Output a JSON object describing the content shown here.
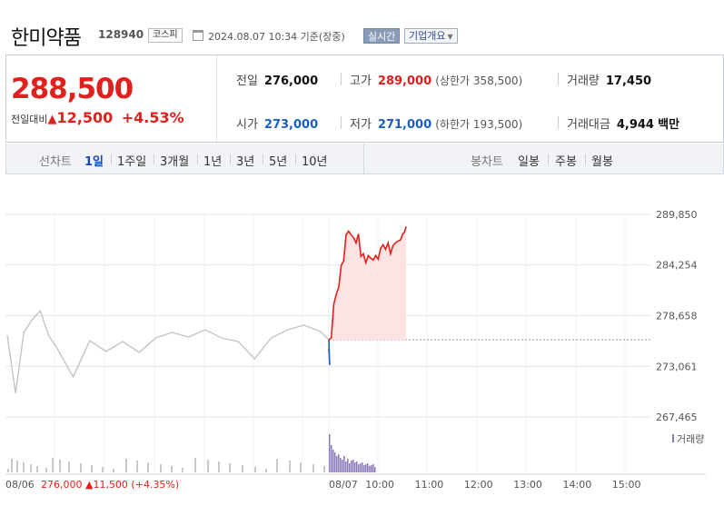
{
  "header": {
    "name": "한미약품",
    "code": "128940",
    "market": "코스피",
    "timestamp": "2024.08.07 10:34 기준(장중)",
    "realtime": "실시간",
    "company_overview": "기업개요"
  },
  "summary": {
    "price": "288,500",
    "change_label": "전일대비",
    "change_value": "12,500",
    "change_pct": "+4.53%",
    "prev_close_label": "전일",
    "prev_close": "276,000",
    "high_label": "고가",
    "high": "289,000",
    "upper_limit": "(상한가 358,500)",
    "volume_label": "거래량",
    "volume": "17,450",
    "open_label": "시가",
    "open": "273,000",
    "low_label": "저가",
    "low": "271,000",
    "lower_limit": "(하한가 193,500)",
    "amount_label": "거래대금",
    "amount": "4,944",
    "amount_unit": "백만"
  },
  "tabs": {
    "line_label": "선차트",
    "line_tabs": [
      "1일",
      "1주일",
      "3개월",
      "1년",
      "3년",
      "5년",
      "10년"
    ],
    "candle_label": "봉차트",
    "candle_tabs": [
      "일봉",
      "주봉",
      "월봉"
    ]
  },
  "colors": {
    "up": "#e0201c",
    "down": "#1a5ec8",
    "prev_line": "#aaaaaa",
    "volume_today": "#8a78b8"
  },
  "chart_data": {
    "type": "line",
    "ylim": [
      267465,
      289850
    ],
    "y_ticks": [
      "289,850",
      "284,254",
      "278,658",
      "273,061",
      "267,465"
    ],
    "x_ticks": [
      "10:00",
      "11:00",
      "12:00",
      "13:00",
      "14:00",
      "15:00"
    ],
    "prev_day_start": "08/06",
    "today_start": "08/07",
    "prev_close": 276000,
    "prev_day_caption": "276,000 ▲11,500 (+4.35%)",
    "volume_legend": "거래량",
    "series": [
      {
        "day": "08/06",
        "x": [
          "09:00",
          "09:10",
          "09:20",
          "09:30",
          "09:40",
          "09:50",
          "10:00",
          "10:20",
          "10:40",
          "11:00",
          "11:20",
          "11:40",
          "12:00",
          "12:20",
          "12:40",
          "13:00",
          "13:20",
          "13:40",
          "14:00",
          "14:20",
          "14:40",
          "15:00",
          "15:20",
          "15:30"
        ],
        "values": [
          276500,
          270100,
          276800,
          278200,
          279200,
          276500,
          275100,
          271900,
          275900,
          274700,
          275800,
          274600,
          276200,
          276800,
          276300,
          277100,
          276200,
          275800,
          273900,
          276200,
          277100,
          277600,
          276900,
          276000
        ]
      },
      {
        "day": "08/07",
        "x": [
          "09:00",
          "09:01",
          "09:03",
          "09:06",
          "09:09",
          "09:12",
          "09:15",
          "09:18",
          "09:21",
          "09:24",
          "09:27",
          "09:30",
          "09:33",
          "09:36",
          "09:39",
          "09:42",
          "09:45",
          "09:48",
          "09:51",
          "09:54",
          "09:57",
          "10:00",
          "10:03",
          "10:06",
          "10:09",
          "10:12",
          "10:15",
          "10:18",
          "10:21",
          "10:24",
          "10:27",
          "10:30",
          "10:32",
          "10:34"
        ],
        "values": [
          275000,
          273200,
          276200,
          279900,
          281000,
          281800,
          284200,
          284700,
          287600,
          288000,
          287600,
          287300,
          286700,
          287700,
          285200,
          285500,
          284500,
          285300,
          285000,
          284800,
          285300,
          284900,
          286100,
          286500,
          286000,
          286700,
          285500,
          286400,
          286700,
          286900,
          287000,
          287700,
          287900,
          288500
        ]
      }
    ]
  }
}
